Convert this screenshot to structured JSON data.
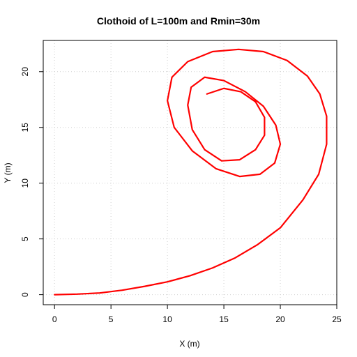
{
  "chart_data": {
    "type": "line",
    "title": "Clothoid of L=100m and Rmin=30m",
    "xlabel": "X (m)",
    "ylabel": "Y (m)",
    "xlim": [
      -1,
      25
    ],
    "ylim": [
      -0.9,
      22.8
    ],
    "xticks": [
      0,
      5,
      10,
      15,
      20,
      25
    ],
    "yticks": [
      0,
      5,
      10,
      15,
      20
    ],
    "grid": true,
    "series": [
      {
        "color": "#ff0000",
        "x": [
          0,
          2,
          4,
          6,
          8,
          10,
          12,
          14,
          16,
          18,
          20,
          22,
          23.4,
          24.1,
          24.1,
          23.5,
          22.4,
          20.6,
          18.5,
          16.3,
          14.0,
          11.8,
          10.4,
          10.0,
          10.6,
          12.2,
          14.3,
          16.4,
          18.2,
          19.5,
          20.0,
          19.6,
          18.5,
          16.9,
          15.0,
          13.3,
          12.1,
          11.8,
          12.2,
          13.3,
          14.8,
          16.4,
          17.8,
          18.6,
          18.6,
          17.8,
          16.5,
          15.0,
          13.5
        ],
        "y": [
          0,
          0.05,
          0.15,
          0.4,
          0.75,
          1.15,
          1.7,
          2.4,
          3.3,
          4.5,
          6.0,
          8.5,
          10.8,
          13.5,
          16.0,
          18.0,
          19.6,
          21.0,
          21.8,
          22.0,
          21.8,
          20.9,
          19.5,
          17.4,
          15.0,
          12.9,
          11.3,
          10.6,
          10.8,
          11.8,
          13.5,
          15.2,
          16.9,
          18.2,
          19.2,
          19.5,
          18.6,
          17.0,
          14.8,
          13.0,
          12.0,
          12.1,
          13.0,
          14.3,
          15.9,
          17.3,
          18.2,
          18.5,
          18.0
        ]
      }
    ]
  }
}
